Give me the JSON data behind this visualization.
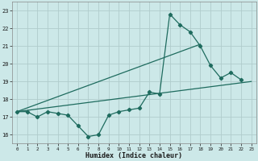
{
  "title": "",
  "xlabel": "Humidex (Indice chaleur)",
  "xlim": [
    -0.5,
    23.5
  ],
  "ylim": [
    15.5,
    23.5
  ],
  "yticks": [
    16,
    17,
    18,
    19,
    20,
    21,
    22,
    23
  ],
  "xticks": [
    0,
    1,
    2,
    3,
    4,
    5,
    6,
    7,
    8,
    9,
    10,
    11,
    12,
    13,
    14,
    15,
    16,
    17,
    18,
    19,
    20,
    21,
    22,
    23
  ],
  "bg_color": "#cce8e8",
  "line_color": "#1e6b5e",
  "grid_color": "#b0cccc",
  "line1_x": [
    0,
    1,
    2,
    3,
    4,
    5,
    6,
    7,
    8,
    9,
    10,
    11,
    12,
    13,
    14,
    15,
    16,
    17,
    18,
    19,
    20,
    21,
    22
  ],
  "line1_y": [
    17.3,
    17.3,
    17.0,
    17.3,
    17.2,
    17.1,
    16.5,
    15.9,
    16.0,
    17.1,
    17.3,
    17.4,
    17.5,
    18.4,
    18.3,
    22.8,
    22.2,
    21.8,
    21.0,
    19.9,
    19.2,
    19.5,
    19.1
  ],
  "line2_x": [
    0,
    18
  ],
  "line2_y": [
    17.3,
    21.1
  ],
  "line3_x": [
    0,
    23
  ],
  "line3_y": [
    17.3,
    19.0
  ],
  "marker": "D",
  "marker_size": 2.2,
  "linewidth": 0.9
}
